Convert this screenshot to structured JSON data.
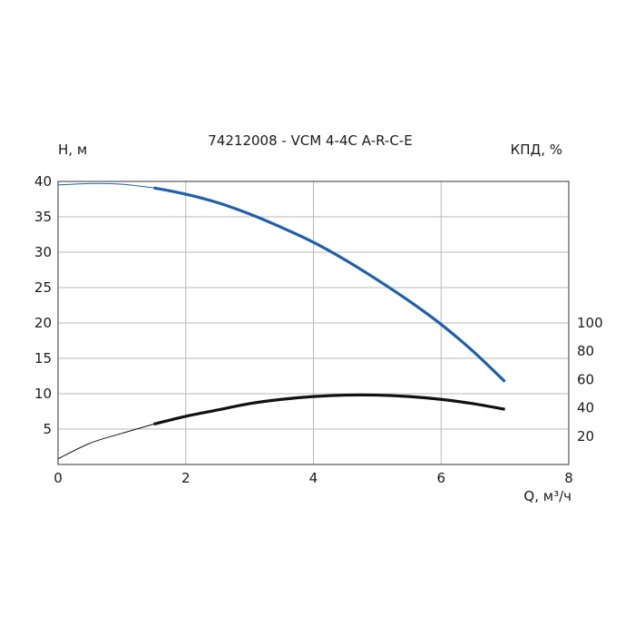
{
  "chart_data": {
    "type": "line",
    "title": "74212008 - VCM 4-4C A-R-C-E",
    "xlabel": "Q, м³/ч",
    "ylabel": "H, м",
    "y2label": "КПД, %",
    "xlim": [
      0,
      8
    ],
    "ylim": [
      0,
      40
    ],
    "y2lim": [
      0,
      200
    ],
    "x_ticks": [
      "0",
      "2",
      "4",
      "6",
      "8"
    ],
    "y_ticks": [
      "5",
      "10",
      "15",
      "20",
      "25",
      "30",
      "35",
      "40"
    ],
    "y2_ticks": [
      "20",
      "40",
      "60",
      "80",
      "100"
    ],
    "grid": true,
    "colors": {
      "head": "#1f5fae",
      "efficiency": "#111111"
    },
    "series": [
      {
        "key": "head",
        "axis": "left",
        "color": "#1f5fae",
        "x": [
          0,
          0.5,
          1.0,
          1.5,
          2.0,
          2.5,
          3.0,
          3.5,
          4.0,
          4.5,
          5.0,
          5.5,
          6.0,
          6.5,
          7.0
        ],
        "values": [
          39.5,
          39.7,
          39.6,
          39.1,
          38.2,
          37.0,
          35.4,
          33.5,
          31.4,
          28.9,
          26.1,
          23.1,
          19.8,
          16.0,
          11.7
        ],
        "operating_from": 1.5
      },
      {
        "key": "efficiency",
        "axis": "right",
        "color": "#111111",
        "x": [
          0,
          0.5,
          1.0,
          1.5,
          2.0,
          2.5,
          3.0,
          3.5,
          4.0,
          4.5,
          5.0,
          5.5,
          6.0,
          6.5,
          7.0
        ],
        "values": [
          4,
          15,
          22,
          28.5,
          34,
          38.5,
          43,
          46,
          48,
          49,
          49,
          48,
          46,
          43,
          39
        ],
        "operating_from": 1.5
      }
    ]
  }
}
